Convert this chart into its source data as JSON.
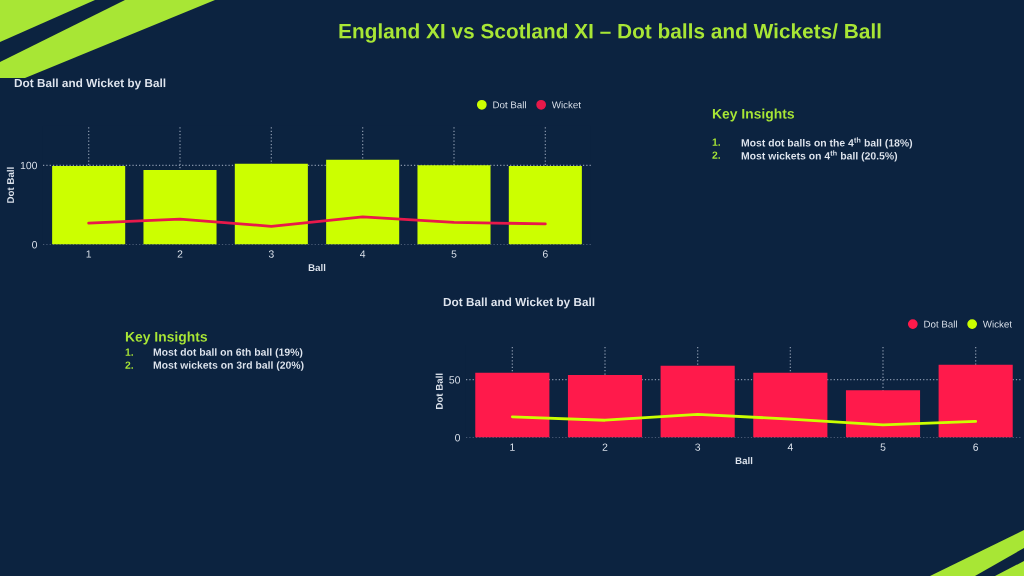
{
  "chart_data": [
    {
      "type": "bar",
      "title": "Dot Ball and Wicket by Ball",
      "xlabel": "Ball",
      "ylabel": "Dot Ball",
      "categories": [
        "1",
        "2",
        "3",
        "4",
        "5",
        "6"
      ],
      "series": [
        {
          "name": "Dot Ball",
          "color": "#ccff00",
          "values": [
            99,
            94,
            102,
            107,
            100,
            99
          ]
        },
        {
          "name": "Wicket",
          "type": "line",
          "color": "#e8194a",
          "values": [
            27,
            32,
            23,
            35,
            28,
            26
          ]
        }
      ],
      "ylim": [
        0,
        150
      ],
      "yticks": [
        0,
        100
      ],
      "grid": true,
      "legend": "top right",
      "line_style": "solid",
      "annotations": [
        "England XI vs Scotland XI – Dot balls and Wickets/ Ball",
        "Key Insights",
        "1. Most dot balls on the 4$^{th}$ ball (18%)",
        "2. Most wickets on 4$^{th}$ ball (20.5%)"
      ]
    },
    {
      "type": "bar",
      "title": "Dot Ball and Wicket by Ball",
      "xlabel": "Ball",
      "ylabel": "Dot Ball",
      "categories": [
        "1",
        "2",
        "3",
        "4",
        "5",
        "6"
      ],
      "series": [
        {
          "name": "Dot Ball",
          "color": "#ff1a4b",
          "values": [
            56,
            54,
            62,
            56,
            41,
            63
          ]
        },
        {
          "name": "Wicket",
          "type": "line",
          "color": "#ccff00",
          "values": [
            18,
            15,
            20,
            16,
            11,
            14
          ]
        }
      ],
      "ylim": [
        0,
        80
      ],
      "yticks": [
        0,
        50
      ],
      "grid": true,
      "legend": "top right",
      "line_style": "solid",
      "annotations": [
        "Key Insights",
        "1. Most dot ball on 6th ball (19%)",
        "2. Most wickets on 3rd ball (20%)"
      ]
    }
  ]
}
